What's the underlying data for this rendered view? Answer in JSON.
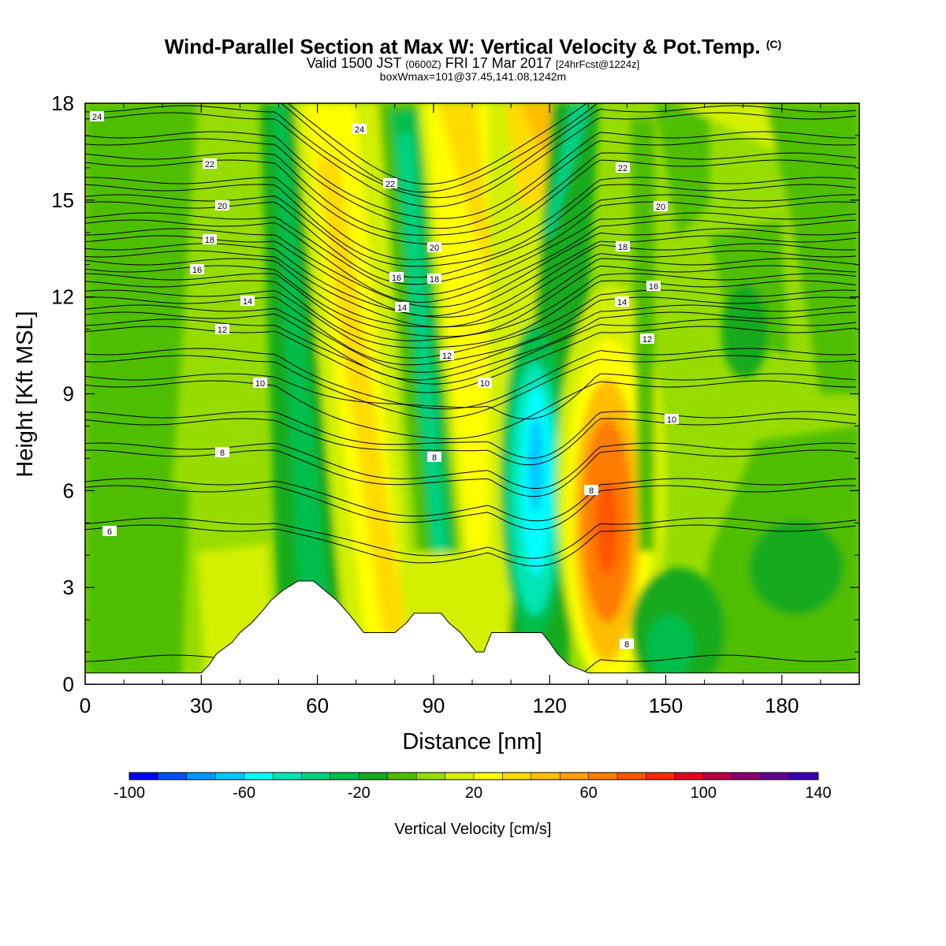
{
  "title": {
    "main": "Wind-Parallel Section at Max W: Vertical Velocity & Pot.Temp.",
    "copyright": "(C)",
    "valid_prefix": "Valid 1500 JST",
    "valid_utc": "(0600Z)",
    "valid_date": "FRI 17 Mar 2017",
    "forecast": "[24hrFcst@1224z]",
    "box_info": "boxWmax=101@37.45,141.08,1242m"
  },
  "chart_data": {
    "type": "heatmap",
    "xlabel": "Distance [nm]",
    "ylabel": "Height [Kft MSL]",
    "xlim": [
      0,
      200
    ],
    "ylim": [
      0,
      18
    ],
    "xticks": [
      "0",
      "30",
      "60",
      "90",
      "120",
      "150",
      "180"
    ],
    "yticks": [
      "0",
      "3",
      "6",
      "9",
      "12",
      "15",
      "18"
    ],
    "colorbar": {
      "label": "Vertical Velocity [cm/s]",
      "min": -100,
      "max": 140,
      "step": 10,
      "tick_labels": [
        "-100",
        "-60",
        "-20",
        "20",
        "60",
        "100",
        "140"
      ],
      "colors": [
        "#0000ff",
        "#0050ff",
        "#0096ff",
        "#00c8ff",
        "#00ffff",
        "#00e6b4",
        "#00d282",
        "#00be4b",
        "#14aa1e",
        "#50be00",
        "#96dc00",
        "#d2f000",
        "#ffff00",
        "#ffdc00",
        "#ffbe00",
        "#ffa000",
        "#ff7d00",
        "#ff5500",
        "#ff2800",
        "#e6001e",
        "#b40046",
        "#8c006e",
        "#640096",
        "#3c00b4"
      ]
    },
    "contour_labels": {
      "left": [
        "6",
        "8",
        "10",
        "12",
        "14",
        "16",
        "18",
        "20",
        "22",
        "24"
      ],
      "middle": [
        "8",
        "10",
        "12",
        "14",
        "16",
        "18",
        "20",
        "22",
        "24"
      ],
      "right": [
        "8",
        "8",
        "10",
        "12",
        "14",
        "16",
        "18",
        "20",
        "22"
      ]
    },
    "terrain_profile": [
      [
        0,
        0.35
      ],
      [
        30,
        0.35
      ],
      [
        32,
        0.6
      ],
      [
        34,
        0.95
      ],
      [
        38,
        1.3
      ],
      [
        40,
        1.6
      ],
      [
        43,
        1.9
      ],
      [
        46,
        2.3
      ],
      [
        48,
        2.6
      ],
      [
        51,
        2.9
      ],
      [
        55,
        3.2
      ],
      [
        59,
        3.2
      ],
      [
        62,
        2.9
      ],
      [
        65,
        2.6
      ],
      [
        68,
        2.2
      ],
      [
        70,
        1.9
      ],
      [
        72,
        1.6
      ],
      [
        80,
        1.6
      ],
      [
        83,
        1.9
      ],
      [
        85,
        2.2
      ],
      [
        92,
        2.2
      ],
      [
        94,
        1.9
      ],
      [
        97,
        1.6
      ],
      [
        99,
        1.3
      ],
      [
        101,
        1.0
      ],
      [
        103,
        1.0
      ],
      [
        105,
        1.6
      ],
      [
        118,
        1.6
      ],
      [
        120,
        1.3
      ],
      [
        122,
        0.95
      ],
      [
        125,
        0.6
      ],
      [
        130,
        0.35
      ],
      [
        200,
        0.35
      ]
    ]
  }
}
